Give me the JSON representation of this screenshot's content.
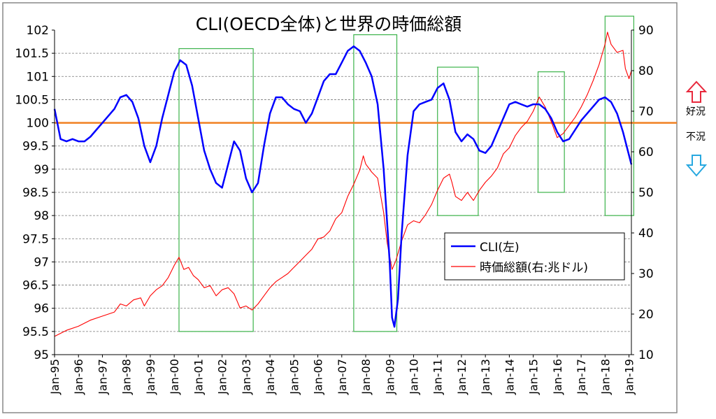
{
  "chart_data": {
    "type": "line",
    "title": "CLI(OECD全体)と世界の時価総額",
    "x_tick_labels": [
      "Jan-95",
      "Jan-96",
      "Jan-97",
      "Jan-98",
      "Jan-99",
      "Jan-00",
      "Jan-01",
      "Jan-02",
      "Jan-03",
      "Jan-04",
      "Jan-05",
      "Jan-06",
      "Jan-07",
      "Jan-08",
      "Jan-09",
      "Jan-10",
      "Jan-11",
      "Jan-12",
      "Jan-13",
      "Jan-14",
      "Jan-15",
      "Jan-16",
      "Jan-17",
      "Jan-18",
      "Jan-19"
    ],
    "x_range": [
      1995.0,
      2019.1
    ],
    "y_left": {
      "min": 95,
      "max": 102,
      "step": 0.5,
      "ticks": [
        "95",
        "95.5",
        "96",
        "96.5",
        "97",
        "97.5",
        "98",
        "98.5",
        "99",
        "99.5",
        "100",
        "100.5",
        "101",
        "101.5",
        "102"
      ]
    },
    "y_right": {
      "min": 10,
      "max": 90,
      "step": 10,
      "ticks": [
        "10",
        "20",
        "30",
        "40",
        "50",
        "60",
        "70",
        "80",
        "90"
      ]
    },
    "grid": true,
    "legend": "center-right",
    "reference_line": {
      "axis": "left",
      "value": 100,
      "color": "#F08020"
    },
    "series": [
      {
        "name": "CLI(左)",
        "axis": "left",
        "color": "#0000FF",
        "points": [
          [
            1995.0,
            100.3
          ],
          [
            1995.25,
            99.65
          ],
          [
            1995.5,
            99.6
          ],
          [
            1995.75,
            99.65
          ],
          [
            1996.0,
            99.6
          ],
          [
            1996.25,
            99.6
          ],
          [
            1996.5,
            99.7
          ],
          [
            1996.75,
            99.85
          ],
          [
            1997.0,
            100.0
          ],
          [
            1997.5,
            100.3
          ],
          [
            1997.75,
            100.55
          ],
          [
            1998.0,
            100.6
          ],
          [
            1998.25,
            100.45
          ],
          [
            1998.5,
            100.1
          ],
          [
            1998.75,
            99.5
          ],
          [
            1999.0,
            99.15
          ],
          [
            1999.25,
            99.5
          ],
          [
            1999.5,
            100.1
          ],
          [
            1999.75,
            100.6
          ],
          [
            2000.0,
            101.1
          ],
          [
            2000.25,
            101.35
          ],
          [
            2000.5,
            101.25
          ],
          [
            2000.75,
            100.8
          ],
          [
            2001.0,
            100.1
          ],
          [
            2001.25,
            99.4
          ],
          [
            2001.5,
            99.0
          ],
          [
            2001.75,
            98.7
          ],
          [
            2002.0,
            98.6
          ],
          [
            2002.25,
            99.1
          ],
          [
            2002.5,
            99.6
          ],
          [
            2002.75,
            99.4
          ],
          [
            2003.0,
            98.8
          ],
          [
            2003.25,
            98.5
          ],
          [
            2003.5,
            98.7
          ],
          [
            2003.75,
            99.5
          ],
          [
            2004.0,
            100.2
          ],
          [
            2004.25,
            100.55
          ],
          [
            2004.5,
            100.55
          ],
          [
            2004.75,
            100.4
          ],
          [
            2005.0,
            100.3
          ],
          [
            2005.25,
            100.25
          ],
          [
            2005.5,
            100.0
          ],
          [
            2005.75,
            100.2
          ],
          [
            2006.0,
            100.55
          ],
          [
            2006.25,
            100.9
          ],
          [
            2006.5,
            101.05
          ],
          [
            2006.75,
            101.05
          ],
          [
            2007.0,
            101.3
          ],
          [
            2007.25,
            101.55
          ],
          [
            2007.5,
            101.65
          ],
          [
            2007.75,
            101.55
          ],
          [
            2008.0,
            101.3
          ],
          [
            2008.25,
            101.0
          ],
          [
            2008.5,
            100.4
          ],
          [
            2008.75,
            99.0
          ],
          [
            2009.0,
            97.0
          ],
          [
            2009.1,
            95.8
          ],
          [
            2009.2,
            95.6
          ],
          [
            2009.35,
            96.2
          ],
          [
            2009.5,
            97.6
          ],
          [
            2009.75,
            99.3
          ],
          [
            2010.0,
            100.25
          ],
          [
            2010.25,
            100.4
          ],
          [
            2010.5,
            100.45
          ],
          [
            2010.75,
            100.5
          ],
          [
            2011.0,
            100.75
          ],
          [
            2011.25,
            100.85
          ],
          [
            2011.5,
            100.5
          ],
          [
            2011.75,
            99.8
          ],
          [
            2012.0,
            99.6
          ],
          [
            2012.25,
            99.75
          ],
          [
            2012.5,
            99.65
          ],
          [
            2012.75,
            99.4
          ],
          [
            2013.0,
            99.35
          ],
          [
            2013.25,
            99.5
          ],
          [
            2013.5,
            99.8
          ],
          [
            2013.75,
            100.1
          ],
          [
            2014.0,
            100.4
          ],
          [
            2014.25,
            100.45
          ],
          [
            2014.5,
            100.4
          ],
          [
            2014.75,
            100.35
          ],
          [
            2015.0,
            100.4
          ],
          [
            2015.25,
            100.4
          ],
          [
            2015.5,
            100.3
          ],
          [
            2015.75,
            100.1
          ],
          [
            2016.0,
            99.8
          ],
          [
            2016.25,
            99.6
          ],
          [
            2016.5,
            99.65
          ],
          [
            2016.75,
            99.85
          ],
          [
            2017.0,
            100.05
          ],
          [
            2017.25,
            100.2
          ],
          [
            2017.5,
            100.35
          ],
          [
            2017.75,
            100.5
          ],
          [
            2018.0,
            100.55
          ],
          [
            2018.25,
            100.45
          ],
          [
            2018.5,
            100.2
          ],
          [
            2018.75,
            99.8
          ],
          [
            2019.0,
            99.3
          ],
          [
            2019.1,
            99.1
          ]
        ]
      },
      {
        "name": "時価総額(右:兆ドル)",
        "axis": "right",
        "color": "#FF0000",
        "points": [
          [
            1995.0,
            14.5
          ],
          [
            1995.5,
            16.0
          ],
          [
            1996.0,
            17.0
          ],
          [
            1996.5,
            18.5
          ],
          [
            1997.0,
            19.5
          ],
          [
            1997.5,
            20.5
          ],
          [
            1997.75,
            22.5
          ],
          [
            1998.0,
            22.0
          ],
          [
            1998.3,
            23.5
          ],
          [
            1998.6,
            24.0
          ],
          [
            1998.75,
            22.0
          ],
          [
            1999.0,
            24.5
          ],
          [
            1999.25,
            26.0
          ],
          [
            1999.5,
            27.0
          ],
          [
            1999.75,
            29.0
          ],
          [
            2000.0,
            32.0
          ],
          [
            2000.2,
            34.0
          ],
          [
            2000.4,
            31.0
          ],
          [
            2000.6,
            31.5
          ],
          [
            2000.8,
            29.5
          ],
          [
            2001.0,
            28.5
          ],
          [
            2001.25,
            26.5
          ],
          [
            2001.5,
            27.0
          ],
          [
            2001.75,
            24.5
          ],
          [
            2002.0,
            26.0
          ],
          [
            2002.25,
            26.5
          ],
          [
            2002.5,
            25.0
          ],
          [
            2002.75,
            21.5
          ],
          [
            2003.0,
            22.0
          ],
          [
            2003.25,
            21.0
          ],
          [
            2003.5,
            22.5
          ],
          [
            2003.75,
            24.5
          ],
          [
            2004.0,
            26.5
          ],
          [
            2004.25,
            28.0
          ],
          [
            2004.5,
            29.0
          ],
          [
            2004.75,
            30.0
          ],
          [
            2005.0,
            31.5
          ],
          [
            2005.25,
            33.0
          ],
          [
            2005.5,
            34.5
          ],
          [
            2005.75,
            36.0
          ],
          [
            2006.0,
            38.5
          ],
          [
            2006.25,
            39.0
          ],
          [
            2006.5,
            40.5
          ],
          [
            2006.75,
            43.5
          ],
          [
            2007.0,
            45.0
          ],
          [
            2007.25,
            49.0
          ],
          [
            2007.5,
            52.0
          ],
          [
            2007.75,
            55.5
          ],
          [
            2007.9,
            59.0
          ],
          [
            2008.0,
            57.0
          ],
          [
            2008.25,
            55.0
          ],
          [
            2008.5,
            53.5
          ],
          [
            2008.75,
            45.0
          ],
          [
            2008.9,
            37.5
          ],
          [
            2009.1,
            31.0
          ],
          [
            2009.25,
            33.0
          ],
          [
            2009.5,
            38.0
          ],
          [
            2009.75,
            42.0
          ],
          [
            2010.0,
            43.0
          ],
          [
            2010.25,
            42.5
          ],
          [
            2010.5,
            44.5
          ],
          [
            2010.75,
            47.0
          ],
          [
            2011.0,
            50.5
          ],
          [
            2011.25,
            53.5
          ],
          [
            2011.5,
            54.5
          ],
          [
            2011.6,
            52.5
          ],
          [
            2011.75,
            49.0
          ],
          [
            2012.0,
            48.0
          ],
          [
            2012.25,
            50.0
          ],
          [
            2012.5,
            48.0
          ],
          [
            2012.75,
            50.5
          ],
          [
            2013.0,
            52.5
          ],
          [
            2013.25,
            54.0
          ],
          [
            2013.5,
            56.0
          ],
          [
            2013.75,
            59.5
          ],
          [
            2014.0,
            61.0
          ],
          [
            2014.25,
            64.0
          ],
          [
            2014.5,
            66.0
          ],
          [
            2014.75,
            67.5
          ],
          [
            2015.0,
            70.0
          ],
          [
            2015.25,
            73.5
          ],
          [
            2015.5,
            71.0
          ],
          [
            2015.75,
            67.5
          ],
          [
            2016.0,
            63.5
          ],
          [
            2016.25,
            64.5
          ],
          [
            2016.5,
            66.5
          ],
          [
            2016.75,
            68.5
          ],
          [
            2017.0,
            71.0
          ],
          [
            2017.25,
            74.0
          ],
          [
            2017.5,
            77.5
          ],
          [
            2017.75,
            81.5
          ],
          [
            2018.0,
            86.5
          ],
          [
            2018.1,
            89.5
          ],
          [
            2018.25,
            86.5
          ],
          [
            2018.5,
            84.5
          ],
          [
            2018.75,
            85.0
          ],
          [
            2018.85,
            80.5
          ],
          [
            2019.0,
            78.0
          ],
          [
            2019.1,
            80.0
          ]
        ]
      }
    ],
    "boxes": [
      {
        "x0": 2000.2,
        "x1": 2003.3,
        "y0": 95.5,
        "y1": 101.6
      },
      {
        "x0": 2007.5,
        "x1": 2009.3,
        "y0": 95.5,
        "y1": 101.9
      },
      {
        "x0": 2011.0,
        "x1": 2012.7,
        "y0": 98.0,
        "y1": 101.2
      },
      {
        "x0": 2015.2,
        "x1": 2016.3,
        "y0": 98.5,
        "y1": 101.1
      },
      {
        "x0": 2018.0,
        "x1": 2019.2,
        "y0": 98.0,
        "y1": 102.3
      }
    ],
    "box_color": "#3CB34A"
  },
  "side_labels": {
    "good": "好況",
    "bad": "不況",
    "up_arrow_color": "#E8283C",
    "down_arrow_color": "#27A8E0"
  },
  "icons": {
    "up": "up-arrow-icon",
    "down": "down-arrow-icon"
  }
}
